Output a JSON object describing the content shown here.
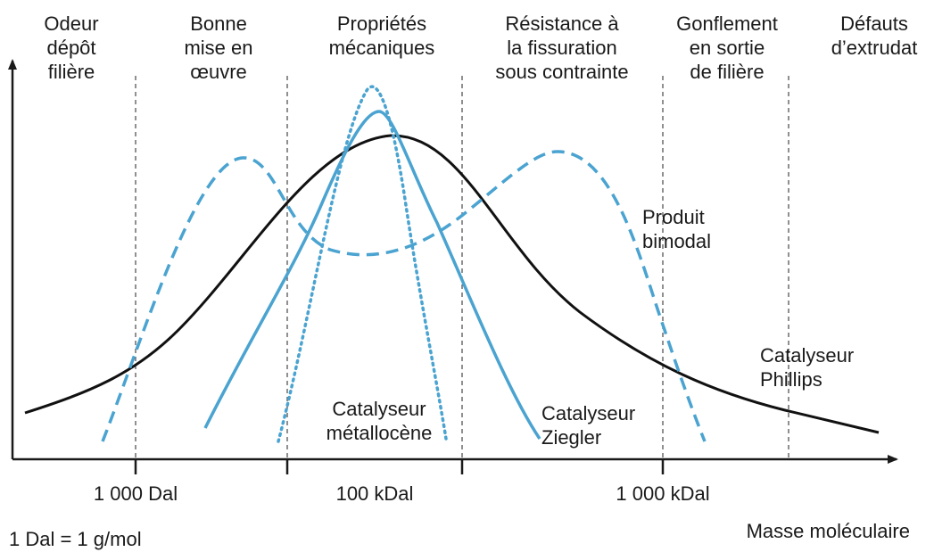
{
  "zones": [
    [
      "Odeur",
      "dépôt",
      "filière"
    ],
    [
      "Bonne",
      "mise en",
      "œuvre"
    ],
    [
      "Propriétés",
      "mécaniques"
    ],
    [
      "Résistance à",
      "la fissuration",
      "sous contrainte"
    ],
    [
      "Gonflement",
      "en sortie",
      "de filière"
    ],
    [
      "Défauts",
      "d’extrudat"
    ]
  ],
  "x_labels": [
    "1 000 Dal",
    "100 kDal",
    "1 000 kDal"
  ],
  "x_axis_label": "Masse moléculaire",
  "note": "1 Dal = 1 g/mol",
  "curve_labels": {
    "bimodal": [
      "Produit",
      "bimodal"
    ],
    "phillips": [
      "Catalyseur",
      "Phillips"
    ],
    "metallocene": [
      "Catalyseur",
      "métallocène"
    ],
    "ziegler": [
      "Catalyseur",
      "Ziegler"
    ]
  }
}
